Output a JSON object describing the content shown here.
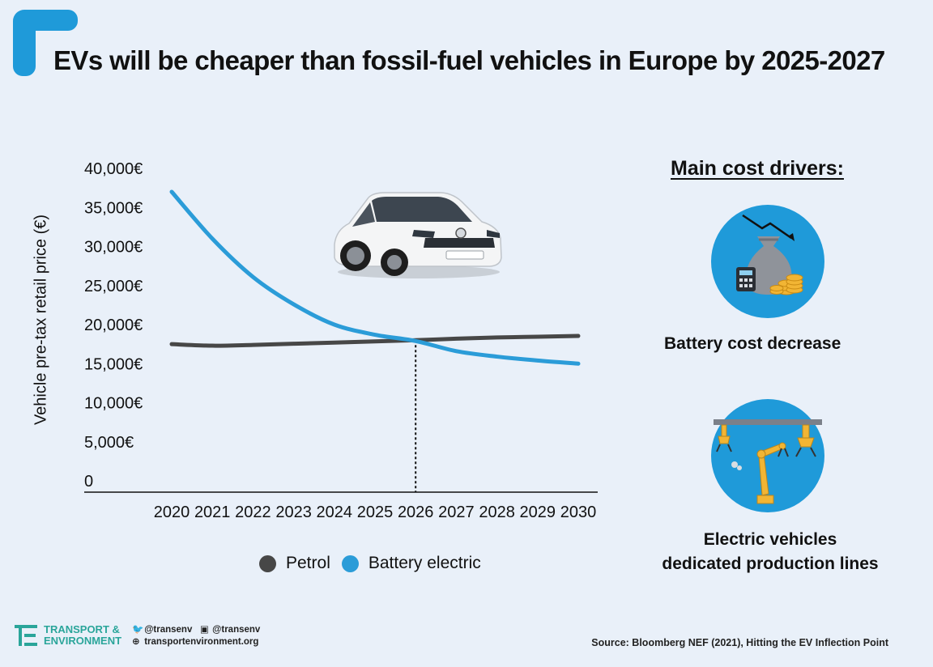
{
  "title": "EVs will be cheaper than fossil-fuel vehicles in Europe by 2025-2027",
  "colors": {
    "accent": "#1f9ad9",
    "petrol": "#474747",
    "electric": "#2b9cd8",
    "background": "#e9f0f9",
    "brand": "#2aa59a"
  },
  "chart_data": {
    "type": "line",
    "ylabel": "Vehicle pre-tax retail price (€)",
    "xlabel": "",
    "ylim": [
      0,
      40000
    ],
    "yticks": [
      0,
      5000,
      10000,
      15000,
      20000,
      25000,
      30000,
      35000,
      40000
    ],
    "ytick_labels": [
      "0",
      "5,000€",
      "10,000€",
      "15,000€",
      "20,000€",
      "25,000€",
      "30,000€",
      "35,000€",
      "40,000€"
    ],
    "x": [
      "2020",
      "2021",
      "2022",
      "2023",
      "2024",
      "2025",
      "2026",
      "2027",
      "2028",
      "2029",
      "2030"
    ],
    "series": [
      {
        "name": "Petrol",
        "values": [
          17500,
          17300,
          17400,
          17550,
          17700,
          17850,
          18000,
          18200,
          18350,
          18450,
          18550
        ]
      },
      {
        "name": "Battery electric",
        "values": [
          37000,
          31000,
          26100,
          22600,
          20000,
          18700,
          17900,
          16600,
          15900,
          15400,
          15000
        ]
      }
    ],
    "crossover_x": "2026",
    "legend_position": "bottom"
  },
  "legend": {
    "petrol": "Petrol",
    "electric": "Battery electric"
  },
  "drivers": {
    "title": "Main cost drivers:",
    "items": [
      {
        "label": "Battery cost decrease",
        "icon": "money-bag-down-icon"
      },
      {
        "label_line1": "Electric vehicles",
        "label_line2": "dedicated production lines",
        "icon": "robot-arms-icon"
      }
    ]
  },
  "footer": {
    "org_line1": "TRANSPORT &",
    "org_line2": "ENVIRONMENT",
    "twitter": "@transenv",
    "facebook": "@transenv",
    "website": "transportenvironment.org",
    "source": "Source: Bloomberg NEF (2021), Hitting the EV Inflection Point"
  }
}
